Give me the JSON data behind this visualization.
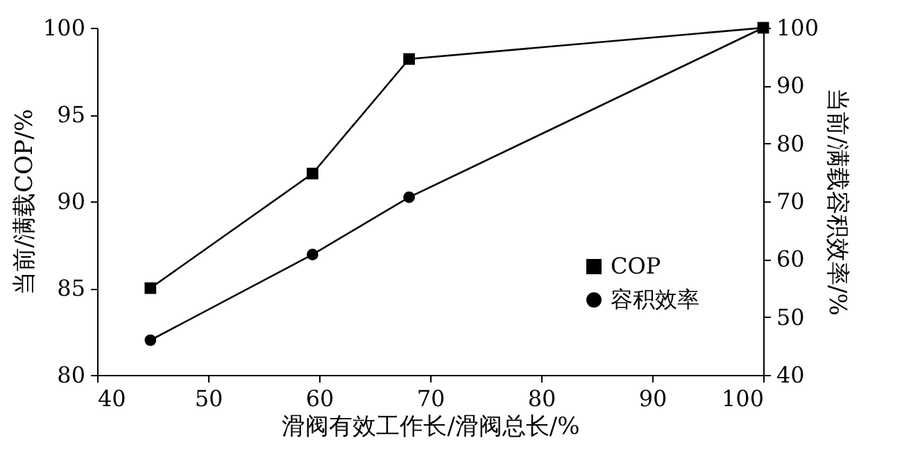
{
  "chart_data": {
    "type": "line",
    "xlabel": "滑阀有效工作长/滑阀总长/%",
    "ylabel": "当前/满载COP/%",
    "y2label": "当前/满载容积效率/%",
    "x": [
      44.8,
      59.4,
      68.1,
      100
    ],
    "series": [
      {
        "name": "COP",
        "color": "#000000",
        "marker": "square",
        "values": [
          85.0,
          91.6,
          98.2,
          100
        ]
      },
      {
        "name": "容积效率",
        "color": "#000000",
        "marker": "circle",
        "axis": "y2",
        "values": [
          46.0,
          60.8,
          70.7,
          100
        ]
      }
    ],
    "xlim": [
      40,
      100
    ],
    "xticks": [
      40,
      50,
      60,
      70,
      80,
      90,
      100
    ],
    "ylim": [
      80,
      100
    ],
    "yticks": [
      80,
      85,
      90,
      95,
      100
    ],
    "y2lim": [
      40,
      100
    ],
    "y2ticks": [
      40,
      50,
      60,
      70,
      80,
      90,
      100
    ],
    "legend": "bottom right",
    "grid": false,
    "line_style": "solid"
  }
}
